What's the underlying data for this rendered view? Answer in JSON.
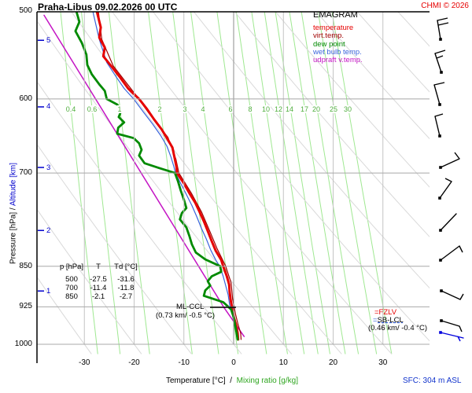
{
  "header": {
    "title": "Praha-Libus   09.02.2026 00 UTC",
    "copyright": "CHMI © 2026"
  },
  "legend": {
    "title": "EMAGRAM",
    "items": [
      {
        "label": "temperature",
        "color": "#e60000"
      },
      {
        "label": "virt.temp.",
        "color": "#a00000"
      },
      {
        "label": "dew point",
        "color": "#008a00"
      },
      {
        "label": "wet bulb temp.",
        "color": "#3a64dc"
      },
      {
        "label": "udpraft v.temp.",
        "color": "#c414c4"
      }
    ]
  },
  "axes": {
    "pressure_label": "Pressure [hPa]",
    "axis_sep": " / ",
    "altitude_label": "Altitude [km]",
    "pressure_ticks": [
      500,
      600,
      700,
      850,
      925,
      1000
    ],
    "altitude_ticks": [
      {
        "km": "5",
        "p": 531
      },
      {
        "km": "4",
        "p": 610
      },
      {
        "km": "3",
        "p": 692
      },
      {
        "km": "2",
        "p": 789
      },
      {
        "km": "1",
        "p": 895
      }
    ],
    "temp_ticks": [
      -30,
      -20,
      -10,
      0,
      10,
      20,
      30
    ],
    "x_title_temp": "Temperature [°C]",
    "x_title_sep": "  /  ",
    "x_title_mix": "Mixing ratio [g/kg]",
    "mixing_ratios": [
      0.4,
      0.6,
      1,
      2,
      3,
      4,
      6,
      8,
      10,
      12,
      14,
      17,
      20,
      25,
      30
    ]
  },
  "table": {
    "header": {
      "p": "p [hPa]",
      "t": "T",
      "td": "Td [°C]"
    },
    "rows": [
      [
        "500",
        "-27.5",
        "-31.6"
      ],
      [
        "700",
        "-11.4",
        "-11.8"
      ],
      [
        "850",
        "-2.1",
        "-2.7"
      ]
    ]
  },
  "annotations": {
    "ml_ccl": "ML-CCL",
    "ml_ccl_detail": "(0.73 km/ -0.5 °C)",
    "fzlv": "=FZLV",
    "sb_prefix": "=",
    "sb_lcl": "SB-LCL",
    "sb_detail": "(0.46 km/ -0.4 °C)",
    "sfc": "SFC: 304 m ASL"
  },
  "colors": {
    "temperature": "#e60000",
    "virt_temp": "#a00000",
    "dew_point": "#008a00",
    "wet_bulb": "#3a64dc",
    "updraft": "#c414c4",
    "grid_h": "#a8a8a8",
    "grid_v": "#c4c4c4",
    "grid_v0": "#8c8c8c",
    "adiabat": "#d9d9d9",
    "mixing_line": "#9fe891",
    "mixing_label": "#4fae3d",
    "altitude_blue": "#0000cd",
    "sfc_blue": "#1133cc",
    "barb_black": "#000000",
    "barb_blue": "#0000dd"
  },
  "chart_data": {
    "type": "line",
    "title": "EMAGRAM sounding Praha-Libus 09.02.2026 00 UTC",
    "x_axis": {
      "label": "Temperature [°C] / Mixing ratio [g/kg]",
      "range": [
        -39.5,
        39.4
      ],
      "ticks": [
        -30,
        -20,
        -10,
        0,
        10,
        20,
        30
      ]
    },
    "y_axis": {
      "label": "Pressure [hPa] / Altitude [km]",
      "scale": "log",
      "range": [
        1000,
        500
      ],
      "ticks": [
        500,
        600,
        700,
        850,
        925,
        1000
      ]
    },
    "levels_table": [
      {
        "p": 500,
        "T": -27.5,
        "Td": -31.6
      },
      {
        "p": 700,
        "T": -11.4,
        "Td": -11.8
      },
      {
        "p": 850,
        "T": -2.1,
        "Td": -2.7
      }
    ],
    "ml_ccl": {
      "height_km": 0.73,
      "temp_c": -0.5
    },
    "sb_lcl": {
      "height_km": 0.46,
      "temp_c": -0.4
    },
    "surface_elevation_m": 304,
    "dry_adiabats_theta": [
      -30,
      -20,
      -10,
      0,
      10,
      20,
      30,
      40,
      50,
      60,
      70,
      80,
      90,
      100,
      110,
      120
    ],
    "mixing_ratio_lines": [
      0.4,
      0.6,
      1,
      2,
      3,
      4,
      6,
      8,
      10,
      12,
      14,
      17,
      20,
      25,
      30
    ],
    "series": [
      {
        "name": "temperature",
        "color": "#e60000",
        "width": 3,
        "points": [
          [
            500,
            -27.5
          ],
          [
            517,
            -26.7
          ],
          [
            528,
            -27.0
          ],
          [
            539,
            -25.9
          ],
          [
            549,
            -26.2
          ],
          [
            561,
            -24.5
          ],
          [
            573,
            -22.9
          ],
          [
            587,
            -21.2
          ],
          [
            600,
            -19.0
          ],
          [
            612,
            -17.5
          ],
          [
            626,
            -16.0
          ],
          [
            639,
            -14.5
          ],
          [
            651,
            -13.4
          ],
          [
            664,
            -12.3
          ],
          [
            677,
            -11.9
          ],
          [
            691,
            -11.5
          ],
          [
            700,
            -11.4
          ],
          [
            714,
            -10.1
          ],
          [
            730,
            -8.9
          ],
          [
            745,
            -7.7
          ],
          [
            760,
            -6.8
          ],
          [
            774,
            -6.0
          ],
          [
            790,
            -5.2
          ],
          [
            807,
            -4.4
          ],
          [
            823,
            -3.6
          ],
          [
            839,
            -2.5
          ],
          [
            850,
            -2.1
          ],
          [
            867,
            -1.4
          ],
          [
            883,
            -0.9
          ],
          [
            897,
            -0.8
          ],
          [
            912,
            -0.6
          ],
          [
            927,
            -0.3
          ],
          [
            944,
            0.0
          ],
          [
            961,
            0.5
          ],
          [
            977,
            0.8
          ],
          [
            990,
            0.9
          ]
        ]
      },
      {
        "name": "virt.temp.",
        "color": "#a00000",
        "width": 1.2,
        "points": [
          [
            500,
            -27.2
          ],
          [
            530,
            -26.5
          ],
          [
            560,
            -24.2
          ],
          [
            590,
            -20.3
          ],
          [
            620,
            -16.8
          ],
          [
            650,
            -13.2
          ],
          [
            680,
            -11.6
          ],
          [
            700,
            -11.0
          ],
          [
            730,
            -8.5
          ],
          [
            760,
            -6.4
          ],
          [
            790,
            -4.8
          ],
          [
            820,
            -3.3
          ],
          [
            850,
            -1.6
          ],
          [
            880,
            -0.5
          ],
          [
            910,
            -0.2
          ],
          [
            940,
            0.4
          ],
          [
            960,
            0.9
          ],
          [
            977,
            1.4
          ],
          [
            990,
            1.5
          ]
        ]
      },
      {
        "name": "dew point",
        "color": "#008a00",
        "width": 2.8,
        "points": [
          [
            500,
            -31.6
          ],
          [
            511,
            -31.0
          ],
          [
            521,
            -31.8
          ],
          [
            534,
            -30.5
          ],
          [
            547,
            -29.6
          ],
          [
            559,
            -29.4
          ],
          [
            570,
            -28.5
          ],
          [
            582,
            -27.0
          ],
          [
            590,
            -25.9
          ],
          [
            600,
            -25.5
          ],
          [
            607,
            -23.4
          ],
          [
            615,
            -22.6
          ],
          [
            623,
            -23.1
          ],
          [
            630,
            -22.0
          ],
          [
            637,
            -23.2
          ],
          [
            645,
            -23.4
          ],
          [
            651,
            -20.1
          ],
          [
            658,
            -19.0
          ],
          [
            667,
            -18.5
          ],
          [
            675,
            -19.0
          ],
          [
            686,
            -17.9
          ],
          [
            693,
            -14.9
          ],
          [
            700,
            -11.8
          ],
          [
            712,
            -11.2
          ],
          [
            727,
            -10.6
          ],
          [
            740,
            -10.0
          ],
          [
            753,
            -9.5
          ],
          [
            761,
            -10.4
          ],
          [
            771,
            -10.8
          ],
          [
            784,
            -9.5
          ],
          [
            798,
            -8.9
          ],
          [
            812,
            -8.4
          ],
          [
            826,
            -7.6
          ],
          [
            838,
            -5.7
          ],
          [
            850,
            -2.7
          ],
          [
            860,
            -2.5
          ],
          [
            868,
            -4.4
          ],
          [
            877,
            -5.2
          ],
          [
            885,
            -4.7
          ],
          [
            894,
            -5.7
          ],
          [
            904,
            -6.0
          ],
          [
            916,
            -2.1
          ],
          [
            930,
            -0.5
          ],
          [
            945,
            0.0
          ],
          [
            961,
            0.3
          ],
          [
            977,
            0.6
          ],
          [
            990,
            0.8
          ]
        ]
      },
      {
        "name": "wet bulb temp.",
        "color": "#3a64dc",
        "width": 1.2,
        "points": [
          [
            500,
            -28.3
          ],
          [
            530,
            -27.0
          ],
          [
            556,
            -25.5
          ],
          [
            573,
            -23.6
          ],
          [
            587,
            -22.0
          ],
          [
            600,
            -20.1
          ],
          [
            616,
            -18.2
          ],
          [
            632,
            -16.3
          ],
          [
            647,
            -14.7
          ],
          [
            662,
            -13.4
          ],
          [
            677,
            -12.6
          ],
          [
            691,
            -12.0
          ],
          [
            700,
            -11.7
          ],
          [
            716,
            -10.6
          ],
          [
            732,
            -9.5
          ],
          [
            749,
            -8.4
          ],
          [
            767,
            -7.4
          ],
          [
            785,
            -6.5
          ],
          [
            803,
            -5.5
          ],
          [
            822,
            -4.6
          ],
          [
            839,
            -3.6
          ],
          [
            850,
            -2.8
          ],
          [
            868,
            -2.1
          ],
          [
            885,
            -1.6
          ],
          [
            902,
            -1.1
          ],
          [
            921,
            -0.8
          ],
          [
            939,
            -0.3
          ],
          [
            958,
            0.2
          ],
          [
            977,
            0.6
          ],
          [
            990,
            0.8
          ]
        ]
      },
      {
        "name": "udpraft v.temp.",
        "color": "#c414c4",
        "width": 1.5,
        "points": [
          [
            504,
            -38.1
          ],
          [
            927,
            -1.9
          ],
          [
            984,
            2.1
          ]
        ]
      }
    ]
  },
  "wind_barbs": {
    "barbs": [
      {
        "pts": [
          [
            560,
            50
          ],
          [
            556,
            26
          ]
        ],
        "ticks": [
          [
            556,
            26,
            569,
            23
          ],
          [
            557,
            32,
            570,
            29
          ]
        ],
        "color": "#000000"
      },
      {
        "pts": [
          [
            561,
            92
          ],
          [
            553,
            68
          ]
        ],
        "ticks": [
          [
            553,
            68,
            566,
            64
          ],
          [
            555,
            74,
            563,
            71
          ]
        ],
        "color": "#000000"
      },
      {
        "pts": [
          [
            559,
            133
          ],
          [
            552,
            108
          ]
        ],
        "ticks": [
          [
            552,
            108,
            565,
            105
          ]
        ],
        "color": "#000000"
      },
      {
        "pts": [
          [
            559,
            173
          ],
          [
            553,
            148
          ]
        ],
        "ticks": [
          [
            553,
            148,
            563,
            145
          ]
        ],
        "color": "#000000"
      },
      {
        "pts": [
          [
            560,
            213
          ],
          [
            584,
            202
          ]
        ],
        "ticks": [
          [
            584,
            202,
            578,
            194
          ]
        ],
        "color": "#000000"
      },
      {
        "pts": [
          [
            559,
            252
          ],
          [
            574,
            231
          ]
        ],
        "ticks": [
          [
            574,
            231,
            566,
            227
          ]
        ],
        "color": "#000000"
      },
      {
        "pts": [
          [
            560,
            293
          ],
          [
            580,
            272
          ]
        ],
        "ticks": [],
        "color": "#000000"
      },
      {
        "pts": [
          [
            560,
            331
          ],
          [
            584,
            313
          ]
        ],
        "ticks": [
          [
            584,
            313,
            588,
            321
          ]
        ],
        "color": "#000000"
      },
      {
        "pts": [
          [
            561,
            370
          ],
          [
            585,
            381
          ]
        ],
        "ticks": [
          [
            585,
            381,
            589,
            374
          ]
        ],
        "color": "#000000"
      },
      {
        "pts": [
          [
            561,
            408
          ],
          [
            584,
            415
          ]
        ],
        "ticks": [
          [
            584,
            415,
            587,
            422
          ]
        ],
        "color": "#000000"
      },
      {
        "pts": [
          [
            560,
            423
          ],
          [
            589,
            430
          ]
        ],
        "ticks": [
          [
            582,
            428,
            585,
            434
          ]
        ],
        "color": "#0000dd"
      }
    ]
  }
}
